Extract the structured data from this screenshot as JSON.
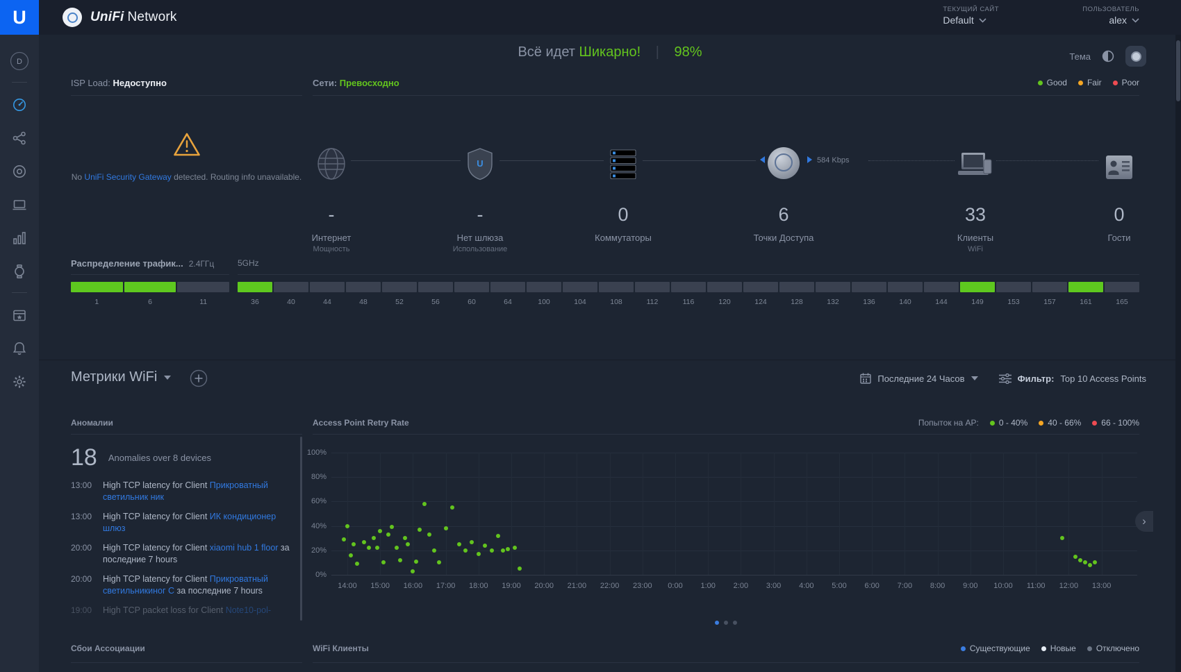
{
  "logo": {
    "letter": "U"
  },
  "brand": {
    "title_em": "UniFi",
    "title_rest": "Network"
  },
  "topbar": {
    "site_label": "ТЕКУЩИЙ САЙТ",
    "site_value": "Default",
    "user_label": "ПОЛЬЗОВАТЕЛЬ",
    "user_value": "alex"
  },
  "sidebar": {
    "items": [
      {
        "icon": "controller-d-icon",
        "label": "D"
      },
      {
        "divider": true
      },
      {
        "icon": "dashboard-icon",
        "active": true
      },
      {
        "icon": "topology-icon"
      },
      {
        "icon": "devices-icon"
      },
      {
        "icon": "clients-icon"
      },
      {
        "icon": "statistics-icon"
      },
      {
        "icon": "insights-icon"
      },
      {
        "divider": true
      },
      {
        "icon": "events-icon"
      },
      {
        "icon": "alerts-icon"
      },
      {
        "icon": "settings-icon"
      }
    ]
  },
  "status": {
    "prefix": "Всё идет",
    "highlight": "Шикарно!",
    "score": "98%",
    "theme_label": "Тема"
  },
  "isp": {
    "label": "ISP Load:",
    "value": "Недоступно",
    "warn_pre": "No",
    "warn_link": "UniFi Security Gateway",
    "warn_post": "detected. Routing info unavailable."
  },
  "network": {
    "label": "Сети:",
    "value": "Превосходно",
    "legend": [
      {
        "label": "Good",
        "color": "#63c41e"
      },
      {
        "label": "Fair",
        "color": "#f5a623"
      },
      {
        "label": "Poor",
        "color": "#ee4b52"
      }
    ],
    "throughput": "584 Kbps",
    "nodes": [
      {
        "icon": "globe-icon",
        "value": "-",
        "label": "Интернет",
        "sublabel": "Мощность"
      },
      {
        "icon": "shield-icon",
        "value": "-",
        "label": "Нет шлюза",
        "sublabel": "Использование"
      },
      {
        "icon": "switch-icon",
        "value": "0",
        "label": "Коммутаторы",
        "sublabel": ""
      },
      {
        "icon": "ap-icon",
        "value": "6",
        "label": "Точки Доступа",
        "sublabel": ""
      },
      {
        "icon": "laptop-icon",
        "value": "33",
        "label": "Клиенты",
        "sublabel": "WiFi"
      },
      {
        "icon": "guests-icon",
        "value": "0",
        "label": "Гости",
        "sublabel": ""
      }
    ]
  },
  "channels": {
    "title": "Распределение трафик...",
    "band24": "2.4ГГц",
    "band5": "5GHz",
    "ch24": [
      {
        "ch": "1",
        "active": true
      },
      {
        "ch": "6",
        "active": true
      },
      {
        "ch": "11",
        "active": false
      }
    ],
    "ch5": [
      {
        "ch": "36",
        "active": true
      },
      {
        "ch": "40",
        "active": false
      },
      {
        "ch": "44",
        "active": false
      },
      {
        "ch": "48",
        "active": false
      },
      {
        "ch": "52",
        "active": false
      },
      {
        "ch": "56",
        "active": false
      },
      {
        "ch": "60",
        "active": false
      },
      {
        "ch": "64",
        "active": false
      },
      {
        "ch": "100",
        "active": false
      },
      {
        "ch": "104",
        "active": false
      },
      {
        "ch": "108",
        "active": false
      },
      {
        "ch": "112",
        "active": false
      },
      {
        "ch": "116",
        "active": false
      },
      {
        "ch": "120",
        "active": false
      },
      {
        "ch": "124",
        "active": false
      },
      {
        "ch": "128",
        "active": false
      },
      {
        "ch": "132",
        "active": false
      },
      {
        "ch": "136",
        "active": false
      },
      {
        "ch": "140",
        "active": false
      },
      {
        "ch": "144",
        "active": false
      },
      {
        "ch": "149",
        "active": true
      },
      {
        "ch": "153",
        "active": false
      },
      {
        "ch": "157",
        "active": false
      },
      {
        "ch": "161",
        "active": true
      },
      {
        "ch": "165",
        "active": false
      }
    ]
  },
  "metrics": {
    "title": "Метрики WiFi",
    "period": "Последние 24 Часов",
    "filter_label": "Фильтр:",
    "filter_value": "Top 10 Access Points"
  },
  "anomalies": {
    "title": "Аномалии",
    "count": "18",
    "summary": "Anomalies over 8 devices",
    "items": [
      {
        "time": "13:00",
        "text": "High TCP latency for Client",
        "link": "Прикроватный светильник ник",
        "suffix": "",
        "faded": false
      },
      {
        "time": "13:00",
        "text": "High TCP latency for Client",
        "link": "ИК кондиционер шлюз",
        "suffix": "",
        "faded": false
      },
      {
        "time": "20:00",
        "text": "High TCP latency for Client",
        "link": "xiaomi hub 1 floor",
        "suffix": "за последние 7 hours",
        "faded": false
      },
      {
        "time": "20:00",
        "text": "High TCP latency for Client",
        "link": "Прикроватный светильникиног С",
        "suffix": "за последние 7 hours",
        "faded": false
      },
      {
        "time": "19:00",
        "text": "High TCP packet loss for Client",
        "link": "Note10-pol-",
        "suffix": "",
        "faded": true
      }
    ]
  },
  "chart_data": {
    "type": "scatter",
    "title": "Access Point Retry Rate",
    "legend_label": "Попыток на AP:",
    "legend": [
      {
        "label": "0 - 40%",
        "color": "#63c41e"
      },
      {
        "label": "40 - 66%",
        "color": "#f5a623"
      },
      {
        "label": "66 - 100%",
        "color": "#ee4b52"
      }
    ],
    "ylim": [
      0,
      100
    ],
    "grid": true,
    "legend_position": "top-right",
    "y_ticks": [
      "100%",
      "80%",
      "60%",
      "40%",
      "20%",
      "0%"
    ],
    "x_ticks": [
      "14:00",
      "15:00",
      "16:00",
      "17:00",
      "18:00",
      "19:00",
      "20:00",
      "21:00",
      "22:00",
      "23:00",
      "0:00",
      "1:00",
      "2:00",
      "3:00",
      "4:00",
      "5:00",
      "6:00",
      "7:00",
      "8:00",
      "9:00",
      "10:00",
      "11:00",
      "12:00",
      "13:00"
    ],
    "x_unit": "hours offset from first tick 14:00",
    "series": [
      {
        "name": "ap-retry-rate",
        "color": "#63c41e",
        "points": [
          [
            -0.1,
            29
          ],
          [
            0,
            40
          ],
          [
            0.1,
            16
          ],
          [
            0.2,
            25
          ],
          [
            0.3,
            9
          ],
          [
            0.5,
            27
          ],
          [
            0.65,
            22
          ],
          [
            0.8,
            30
          ],
          [
            0.9,
            22
          ],
          [
            1.0,
            36
          ],
          [
            1.1,
            10
          ],
          [
            1.25,
            33
          ],
          [
            1.35,
            39
          ],
          [
            1.5,
            22
          ],
          [
            1.6,
            12
          ],
          [
            1.75,
            30
          ],
          [
            1.85,
            25
          ],
          [
            2.0,
            3
          ],
          [
            2.1,
            11
          ],
          [
            2.2,
            37
          ],
          [
            2.35,
            58
          ],
          [
            2.5,
            33
          ],
          [
            2.65,
            20
          ],
          [
            2.8,
            10
          ],
          [
            3.0,
            38
          ],
          [
            3.2,
            55
          ],
          [
            3.4,
            25
          ],
          [
            3.6,
            20
          ],
          [
            3.8,
            27
          ],
          [
            4.0,
            17
          ],
          [
            4.2,
            24
          ],
          [
            4.4,
            20
          ],
          [
            4.6,
            32
          ],
          [
            4.75,
            20
          ],
          [
            4.9,
            21
          ],
          [
            5.1,
            22
          ],
          [
            5.25,
            5
          ],
          [
            21.8,
            30
          ],
          [
            22.2,
            15
          ],
          [
            22.35,
            12
          ],
          [
            22.5,
            10
          ],
          [
            22.65,
            8
          ],
          [
            22.8,
            10
          ]
        ]
      }
    ],
    "pagination": {
      "dots": 3,
      "active": 0
    }
  },
  "bottom": {
    "assoc_title": "Сбои Ассоциации",
    "clients_title": "WiFi Клиенты",
    "clients_legend": [
      {
        "label": "Существующие",
        "color": "#3b7de0"
      },
      {
        "label": "Новые",
        "color": "#e6ecf4"
      },
      {
        "label": "Отключено",
        "color": "#6b7585"
      }
    ]
  }
}
